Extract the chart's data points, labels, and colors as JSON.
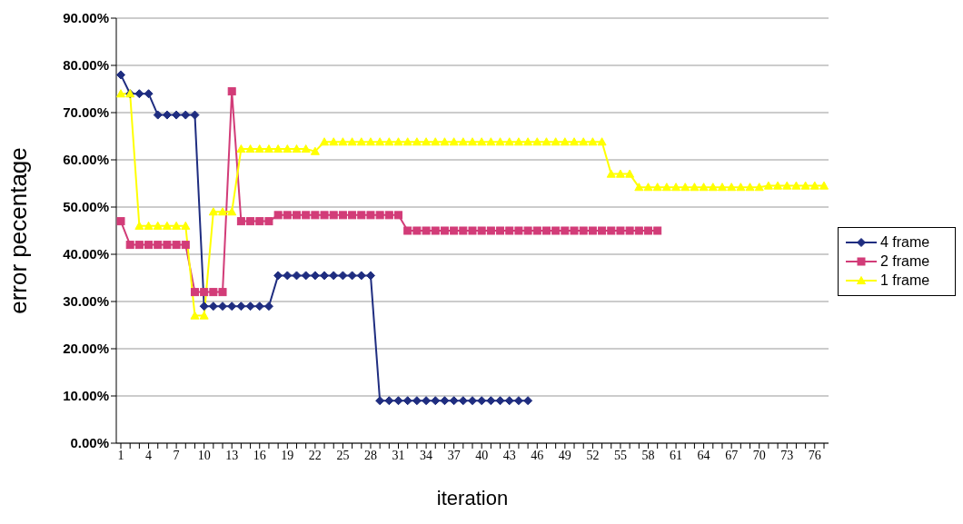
{
  "chart_data": {
    "type": "line",
    "xlabel": "iteration",
    "ylabel": "error pecentage",
    "categories": [
      "1",
      null,
      null,
      "4",
      null,
      null,
      "7",
      null,
      null,
      "10",
      null,
      null,
      "13",
      null,
      null,
      "16",
      null,
      null,
      "19",
      null,
      null,
      "22",
      null,
      null,
      "25",
      null,
      null,
      "28",
      null,
      null,
      "31",
      null,
      null,
      "34",
      null,
      null,
      "37",
      null,
      null,
      "40",
      null,
      null,
      "43",
      null,
      null,
      "46",
      null,
      null,
      "49",
      null,
      null,
      "52",
      null,
      null,
      "55",
      null,
      null,
      "58",
      null,
      null,
      "61",
      null,
      null,
      "64",
      null,
      null,
      "67",
      null,
      null,
      "70",
      null,
      null,
      "73",
      null,
      null,
      "76",
      null
    ],
    "series": [
      {
        "name": "4 frame",
        "color": "#1f2d80",
        "marker": "diamond",
        "values": [
          78,
          74,
          74,
          74,
          69.5,
          69.5,
          69.5,
          69.5,
          69.5,
          29,
          29,
          29,
          29,
          29,
          29,
          29,
          29,
          35.5,
          35.5,
          35.5,
          35.5,
          35.5,
          35.5,
          35.5,
          35.5,
          35.5,
          35.5,
          35.5,
          9,
          9,
          9,
          9,
          9,
          9,
          9,
          9,
          9,
          9,
          9,
          9,
          9,
          9,
          9,
          9,
          9,
          null,
          null,
          null,
          null,
          null,
          null,
          null,
          null,
          null,
          null,
          null,
          null,
          null,
          null,
          null,
          null,
          null,
          null,
          null,
          null,
          null,
          null,
          null,
          null,
          null,
          null,
          null,
          null,
          null,
          null,
          null,
          null
        ]
      },
      {
        "name": "2 frame",
        "color": "#d23c78",
        "marker": "square",
        "values": [
          47,
          42,
          42,
          42,
          42,
          42,
          42,
          42,
          32,
          32,
          32,
          32,
          74.5,
          47,
          47,
          47,
          47,
          48.3,
          48.3,
          48.3,
          48.3,
          48.3,
          48.3,
          48.3,
          48.3,
          48.3,
          48.3,
          48.3,
          48.3,
          48.3,
          48.3,
          45,
          45,
          45,
          45,
          45,
          45,
          45,
          45,
          45,
          45,
          45,
          45,
          45,
          45,
          45,
          45,
          45,
          45,
          45,
          45,
          45,
          45,
          45,
          45,
          45,
          45,
          45,
          45,
          null,
          null,
          null,
          null,
          null,
          null,
          null,
          null,
          null,
          null,
          null,
          null,
          null,
          null,
          null,
          null,
          null,
          null
        ]
      },
      {
        "name": "1 frame",
        "color": "#ffff00",
        "marker": "triangle",
        "values": [
          74,
          74,
          46,
          46,
          46,
          46,
          46,
          46,
          27,
          27,
          49,
          49,
          49,
          62.3,
          62.3,
          62.3,
          62.3,
          62.3,
          62.3,
          62.3,
          62.3,
          61.8,
          63.8,
          63.8,
          63.8,
          63.8,
          63.8,
          63.8,
          63.8,
          63.8,
          63.8,
          63.8,
          63.8,
          63.8,
          63.8,
          63.8,
          63.8,
          63.8,
          63.8,
          63.8,
          63.8,
          63.8,
          63.8,
          63.8,
          63.8,
          63.8,
          63.8,
          63.8,
          63.8,
          63.8,
          63.8,
          63.8,
          63.8,
          57,
          57,
          57,
          54.2,
          54.2,
          54.2,
          54.2,
          54.2,
          54.2,
          54.2,
          54.2,
          54.2,
          54.2,
          54.2,
          54.2,
          54.2,
          54.2,
          54.5,
          54.5,
          54.5,
          54.5,
          54.5,
          54.5,
          54.5
        ]
      }
    ],
    "ylim": [
      0,
      90
    ],
    "yticks": [
      {
        "value": 0,
        "label": "0.00%"
      },
      {
        "value": 10,
        "label": "10.00%"
      },
      {
        "value": 20,
        "label": "20.00%"
      },
      {
        "value": 30,
        "label": "30.00%"
      },
      {
        "value": 40,
        "label": "40.00%"
      },
      {
        "value": 50,
        "label": "50.00%"
      },
      {
        "value": 60,
        "label": "60.00%"
      },
      {
        "value": 70,
        "label": "70.00%"
      },
      {
        "value": 80,
        "label": "80.00%"
      },
      {
        "value": 90,
        "label": "90.00%"
      }
    ],
    "grid": "y",
    "legend": "right",
    "line_style": "solid"
  }
}
